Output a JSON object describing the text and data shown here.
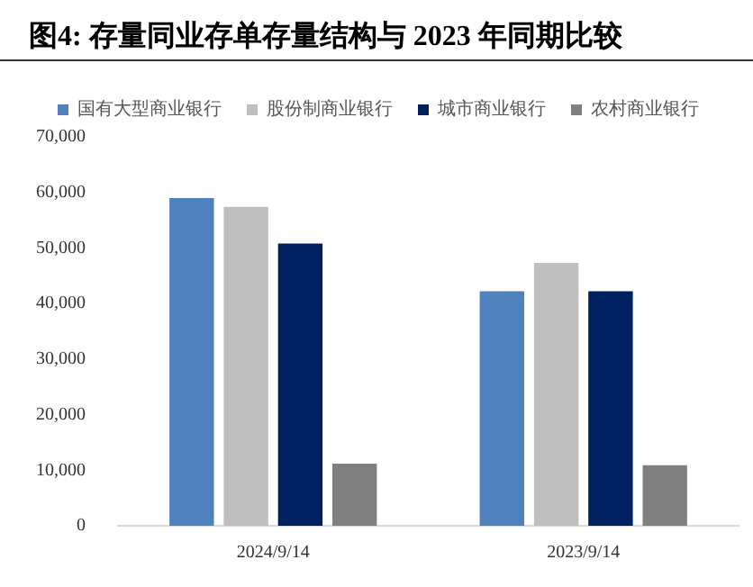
{
  "chart_data": {
    "type": "bar",
    "title": "图4:  存量同业存单存量结构与 2023 年同期比较",
    "categories": [
      "2024/9/14",
      "2023/9/14"
    ],
    "series": [
      {
        "name": "国有大型商业银行",
        "color": "#4f81bd",
        "values": [
          59000,
          42200
        ]
      },
      {
        "name": "股份制商业银行",
        "color": "#bfbfbf",
        "values": [
          57400,
          47300
        ]
      },
      {
        "name": "城市商业银行",
        "color": "#002060",
        "values": [
          50800,
          42200
        ]
      },
      {
        "name": "农村商业银行",
        "color": "#808080",
        "values": [
          11200,
          10900
        ]
      }
    ],
    "ylim": [
      0,
      70000
    ],
    "yticks": [
      {
        "value": 0,
        "label": "0"
      },
      {
        "value": 10000,
        "label": "10,000"
      },
      {
        "value": 20000,
        "label": "20,000"
      },
      {
        "value": 30000,
        "label": "30,000"
      },
      {
        "value": 40000,
        "label": "40,000"
      },
      {
        "value": 50000,
        "label": "50,000"
      },
      {
        "value": 60000,
        "label": "60,000"
      },
      {
        "value": 70000,
        "label": "70,000"
      }
    ],
    "grid": false,
    "legend": "top"
  }
}
